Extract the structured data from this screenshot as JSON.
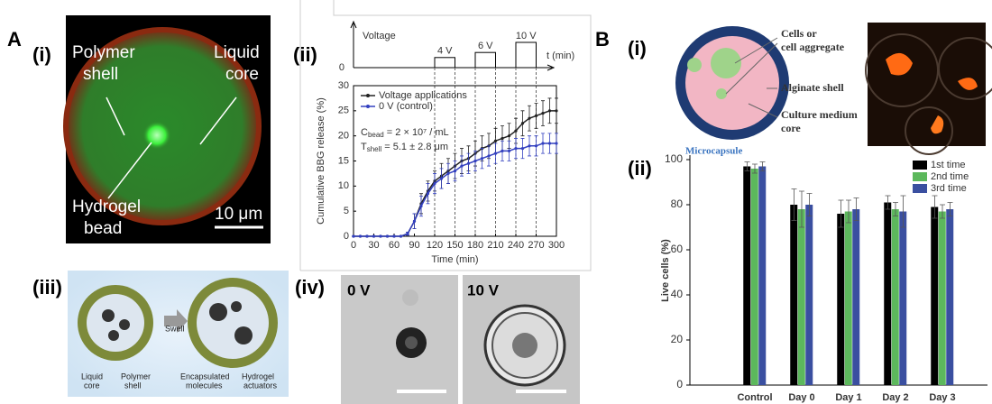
{
  "panel_labels": [
    "A",
    "(i)",
    "(ii)",
    "(iii)",
    "(iv)",
    "B",
    "(i)",
    "(ii)"
  ],
  "fluorescence": {
    "polymer_shell": [
      "Polymer",
      "shell"
    ],
    "liquid_core": [
      "Liquid",
      "core"
    ],
    "hydrogel_bead": [
      "Hydrogel",
      "bead"
    ],
    "scale_bar": "10 μm"
  },
  "schematic_iii": {
    "liquid_core": [
      "Liquid",
      "core"
    ],
    "polymer_shell": [
      "Polymer",
      "shell"
    ],
    "swell": "Swell",
    "encapsulated": [
      "Encapsulated",
      "molecules"
    ],
    "hydrogel_actuators": [
      "Hydrogel",
      "actuators"
    ]
  },
  "microscopy_iv": {
    "left": "0 V",
    "right": "10 V"
  },
  "microcapsule_i": {
    "cells": [
      "Cells or",
      "cell aggregate"
    ],
    "alginate": "Alginate shell",
    "medium": [
      "Culture medium",
      "core"
    ],
    "caption": "Microcapsule"
  },
  "chart_data": [
    {
      "type": "line",
      "xlabel": "Time (min)",
      "ylabel": "Cumulative BBG release (%)",
      "x": [
        0,
        10,
        20,
        30,
        40,
        50,
        60,
        70,
        80,
        90,
        100,
        110,
        120,
        130,
        140,
        150,
        160,
        170,
        180,
        190,
        200,
        210,
        220,
        230,
        240,
        250,
        260,
        270,
        280,
        290,
        300
      ],
      "series": [
        {
          "name": "Voltage applications",
          "color": "#222222",
          "values": [
            0,
            0,
            0,
            0,
            0,
            0,
            0,
            0,
            0.5,
            3,
            6.5,
            9,
            11,
            12,
            13,
            14,
            15,
            15.5,
            16.5,
            17.5,
            18,
            19,
            19.5,
            20,
            21,
            22.5,
            23.5,
            24,
            24.5,
            25,
            25
          ],
          "errors": [
            0,
            0,
            0,
            0,
            0,
            0,
            0,
            0,
            0.3,
            1.5,
            2,
            2,
            2,
            2.5,
            2.5,
            2.5,
            2.5,
            2.5,
            2.5,
            2.5,
            2.5,
            2.5,
            2.5,
            2.5,
            2.5,
            2.5,
            2.5,
            2.5,
            2.5,
            2.5,
            2.5
          ]
        },
        {
          "name": "0 V (control)",
          "color": "#3340c0",
          "values": [
            0,
            0,
            0,
            0,
            0,
            0,
            0,
            0,
            0.5,
            3,
            6,
            8.5,
            10.5,
            11.5,
            12.5,
            13,
            14,
            14.5,
            15,
            15.5,
            16,
            16.5,
            17,
            17,
            17.5,
            17.5,
            18,
            18,
            18.5,
            18.5,
            18.5
          ],
          "errors": [
            0,
            0,
            0,
            0,
            0,
            0,
            0,
            0,
            0.3,
            1.5,
            2,
            2,
            2,
            2,
            2,
            2,
            2,
            2,
            2,
            2,
            2,
            2,
            2,
            2,
            2,
            2,
            2,
            2,
            2,
            2,
            2
          ]
        }
      ],
      "xlim": [
        0,
        300
      ],
      "ylim": [
        0,
        30
      ],
      "xticks": [
        0,
        30,
        60,
        90,
        120,
        150,
        180,
        210,
        240,
        270,
        300
      ],
      "yticks": [
        0,
        5,
        10,
        15,
        20,
        25,
        30
      ],
      "legend": "upper left",
      "annotations": [
        {
          "symbol": "C",
          "subscript": "bead",
          "text": " = 2 × 10⁷ / mL"
        },
        {
          "symbol": "T",
          "subscript": "shell",
          "text": " = 5.1 ± 2.8 μm"
        }
      ],
      "voltage_label": "Voltage",
      "voltage_ticks": [
        0
      ],
      "time_label": "t (min)",
      "pulses": [
        {
          "start": 120,
          "end": 150,
          "voltage": 4,
          "label": "4 V"
        },
        {
          "start": 180,
          "end": 210,
          "voltage": 6,
          "label": "6 V"
        },
        {
          "start": 240,
          "end": 270,
          "voltage": 10,
          "label": "10 V"
        }
      ]
    },
    {
      "type": "bar",
      "ylabel": "Live cells (%)",
      "categories": [
        "Control",
        "Day 0",
        "Day 1",
        "Day 2",
        "Day 3"
      ],
      "series": [
        {
          "name": "1st time",
          "color": "#000000",
          "values": [
            97,
            80,
            76,
            81,
            79
          ],
          "errors": [
            2,
            7,
            6,
            3,
            5
          ]
        },
        {
          "name": "2nd time",
          "color": "#5cb85c",
          "values": [
            96,
            78,
            77,
            78,
            77
          ],
          "errors": [
            2,
            8,
            5,
            3,
            3
          ]
        },
        {
          "name": "3rd time",
          "color": "#3a4fa0",
          "values": [
            97,
            80,
            78,
            77,
            78
          ],
          "errors": [
            2,
            5,
            5,
            7,
            3
          ]
        }
      ],
      "ylim": [
        0,
        100
      ],
      "yticks": [
        0,
        20,
        40,
        60,
        80,
        100
      ],
      "legend": "upper right"
    }
  ]
}
